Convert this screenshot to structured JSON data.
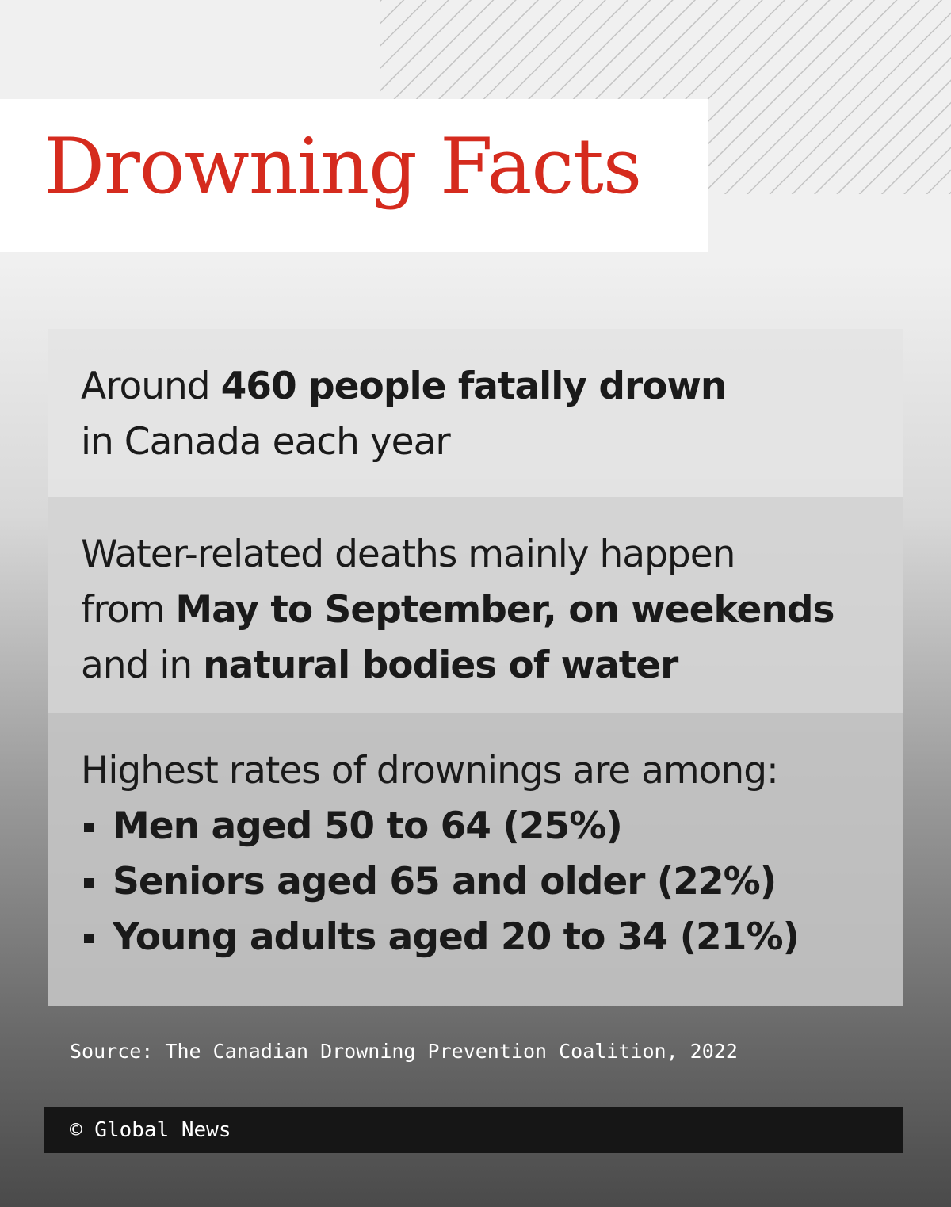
{
  "header": {
    "title": "Drowning Facts"
  },
  "facts": [
    {
      "lines": [
        [
          {
            "text": "Around"
          },
          {
            "text": "460 people fatally drown",
            "bold": true
          }
        ],
        [
          {
            "text": "in Canada each year"
          }
        ]
      ]
    },
    {
      "lines": [
        [
          {
            "text": "Water-related deaths mainly happen"
          }
        ],
        [
          {
            "text": "from"
          },
          {
            "text": "May to September, on weekends",
            "bold": true
          }
        ],
        [
          {
            "text": "and in"
          },
          {
            "text": "natural bodies of water",
            "bold": true
          }
        ]
      ]
    },
    {
      "lines": [
        [
          {
            "text": "Highest rates of drownings are among:"
          }
        ]
      ],
      "bullets": [
        "Men aged 50 to 64 (25%)",
        "Seniors aged 65 and older (22%)",
        "Young adults aged 20 to 34 (21%)"
      ]
    }
  ],
  "source": "Source: The Canadian Drowning Prevention Coalition, 2022",
  "footer": {
    "credit": "© Global News"
  }
}
